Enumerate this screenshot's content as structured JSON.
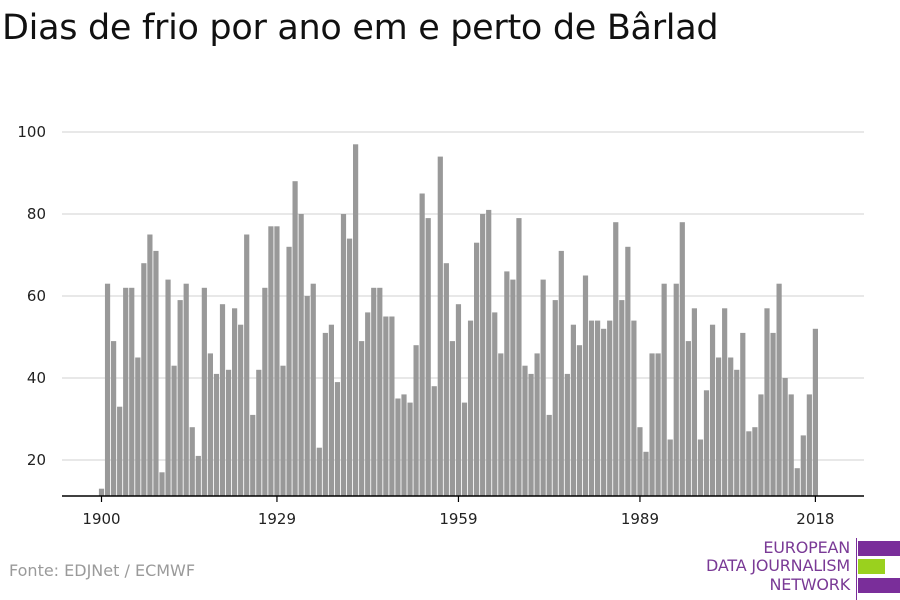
{
  "title": "Dias de frio por ano em e perto de Bârlad",
  "source": "Fonte: EDJNet / ECMWF",
  "logo": {
    "line1": "EUROPEAN",
    "line2": "DATA JOURNALISM",
    "line3": "NETWORK",
    "colors": {
      "purple": "#7a2e9a",
      "green": "#9ad11e"
    }
  },
  "chart_data": {
    "type": "bar",
    "title": "Dias de frio por ano em e perto de Bârlad",
    "xlabel": "",
    "ylabel": "",
    "x_start": 1900,
    "x_end": 2018,
    "xticks": [
      1900,
      1929,
      1959,
      1989,
      2018
    ],
    "yticks": [
      20,
      40,
      60,
      80,
      100
    ],
    "ylim": [
      11,
      101
    ],
    "grid": true,
    "bar_color": "#999999",
    "years": [
      1900,
      1901,
      1902,
      1903,
      1904,
      1905,
      1906,
      1907,
      1908,
      1909,
      1910,
      1911,
      1912,
      1913,
      1914,
      1915,
      1916,
      1917,
      1918,
      1919,
      1920,
      1921,
      1922,
      1923,
      1924,
      1925,
      1926,
      1927,
      1928,
      1929,
      1930,
      1931,
      1932,
      1933,
      1934,
      1935,
      1936,
      1937,
      1938,
      1939,
      1940,
      1941,
      1942,
      1943,
      1944,
      1945,
      1946,
      1947,
      1948,
      1949,
      1950,
      1951,
      1952,
      1953,
      1954,
      1955,
      1956,
      1957,
      1958,
      1959,
      1960,
      1961,
      1962,
      1963,
      1964,
      1965,
      1966,
      1967,
      1968,
      1969,
      1970,
      1971,
      1972,
      1973,
      1974,
      1975,
      1976,
      1977,
      1978,
      1979,
      1980,
      1981,
      1982,
      1983,
      1984,
      1985,
      1986,
      1987,
      1988,
      1989,
      1990,
      1991,
      1992,
      1993,
      1994,
      1995,
      1996,
      1997,
      1998,
      1999,
      2000,
      2001,
      2002,
      2003,
      2004,
      2005,
      2006,
      2007,
      2008,
      2009,
      2010,
      2011,
      2012,
      2013,
      2014,
      2015,
      2016,
      2017,
      2018
    ],
    "values": [
      13,
      63,
      49,
      33,
      62,
      62,
      45,
      68,
      75,
      71,
      17,
      64,
      43,
      59,
      63,
      28,
      21,
      62,
      46,
      41,
      58,
      42,
      57,
      53,
      75,
      31,
      42,
      62,
      77,
      77,
      43,
      72,
      88,
      80,
      60,
      63,
      23,
      51,
      53,
      39,
      80,
      74,
      97,
      49,
      56,
      62,
      62,
      55,
      55,
      35,
      36,
      34,
      48,
      85,
      79,
      38,
      94,
      68,
      49,
      58,
      34,
      54,
      73,
      80,
      81,
      56,
      46,
      66,
      64,
      79,
      43,
      41,
      46,
      64,
      31,
      59,
      71,
      41,
      53,
      48,
      65,
      54,
      54,
      52,
      54,
      78,
      59,
      72,
      54,
      28,
      22,
      46,
      46,
      63,
      25,
      63,
      78,
      49,
      57,
      25,
      37,
      53,
      45,
      57,
      45,
      42,
      51,
      27,
      28,
      36,
      57,
      51,
      63,
      40,
      36,
      18,
      26,
      36,
      52
    ]
  }
}
